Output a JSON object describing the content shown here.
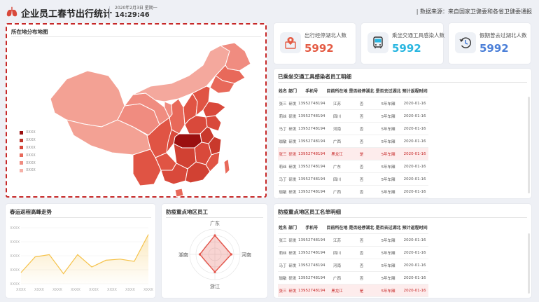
{
  "header": {
    "title": "企业员工春节出行统计",
    "date": "2020年2月3日 星期一",
    "time": "14:29:46",
    "source": "| 数据来源：来自国家卫健委和各省卫健委通报"
  },
  "map": {
    "title": "所在地分布地图",
    "legend": [
      {
        "label": "XXXX",
        "color": "#9b1010"
      },
      {
        "label": "XXXX",
        "color": "#c0362c"
      },
      {
        "label": "XXXX",
        "color": "#d9493b"
      },
      {
        "label": "XXXX",
        "color": "#e8695a"
      },
      {
        "label": "XXXX",
        "color": "#f08c80"
      },
      {
        "label": "XXXX",
        "color": "#f6b1a8"
      }
    ]
  },
  "stats": [
    {
      "label": "出行经停湖北人数",
      "value": "5992",
      "color": "#e45b44",
      "icon": "location-pin-icon"
    },
    {
      "label": "乘坐交通工具感染人数",
      "value": "5992",
      "color": "#29b6e0",
      "icon": "bus-icon"
    },
    {
      "label": "假期曾去过湖北人数",
      "value": "5992",
      "color": "#4b7fd8",
      "icon": "clock-history-icon"
    }
  ],
  "table1": {
    "title": "已乘坐交通工具感染者员工明细",
    "headers": [
      "姓名",
      "部门",
      "手机号",
      "目前所在地",
      "是否经停湖北",
      "是否去过湖北",
      "预计返程时间"
    ],
    "rows": [
      [
        "张三",
        "研发",
        "13952748194",
        "江苏",
        "否",
        "5年车厢",
        "2020-01-16"
      ],
      [
        "莉丝",
        "研发",
        "13952748194",
        "四川",
        "否",
        "5年车厢",
        "2020-01-16"
      ],
      [
        "马丁",
        "研发",
        "13952748194",
        "河南",
        "否",
        "5年车厢",
        "2020-01-16"
      ],
      [
        "珈敏",
        "研发",
        "13952748194",
        "广西",
        "否",
        "5年车厢",
        "2020-01-16"
      ],
      [
        "张三",
        "研发",
        "13952748194",
        "黑龙江",
        "是",
        "5年车厢",
        "2020-01-16"
      ],
      [
        "莉丝",
        "研发",
        "13952748194",
        "广东",
        "否",
        "5年车厢",
        "2020-01-16"
      ],
      [
        "马丁",
        "研发",
        "13952748194",
        "四川",
        "否",
        "5年车厢",
        "2020-01-16"
      ],
      [
        "珈敏",
        "研发",
        "13952748194",
        "广西",
        "否",
        "5年车厢",
        "2020-01-16"
      ]
    ]
  },
  "table2": {
    "title": "防疫重点地区员工名单明细",
    "headers": [
      "姓名",
      "部门",
      "手机号",
      "目前所在地",
      "是否经停湖北",
      "是否去过湖北",
      "预计返程时间"
    ],
    "rows": [
      [
        "张三",
        "研发",
        "13952748194",
        "江苏",
        "否",
        "5年车厢",
        "2020-01-16"
      ],
      [
        "莉丝",
        "研发",
        "13952748194",
        "四川",
        "否",
        "5年车厢",
        "2020-01-16"
      ],
      [
        "马丁",
        "研发",
        "13952748194",
        "河南",
        "否",
        "5年车厢",
        "2020-01-16"
      ],
      [
        "珈敏",
        "研发",
        "13952748194",
        "广西",
        "否",
        "5年车厢",
        "2020-01-16"
      ],
      [
        "张三",
        "研发",
        "13952748194",
        "黑龙江",
        "是",
        "5年车厢",
        "2020-01-16"
      ]
    ]
  },
  "trend": {
    "title": "春运返程高峰走势",
    "y_ticks": [
      "XXXX",
      "XXXX",
      "XXXX",
      "XXXX",
      "XXXX"
    ],
    "x_ticks": [
      "XXXX",
      "XXXX",
      "XXXX",
      "XXXX",
      "XXXX",
      "XXXX",
      "XXXX",
      "XXXX"
    ],
    "values": [
      20,
      48,
      52,
      18,
      52,
      30,
      42,
      44,
      40,
      88
    ],
    "ylim": [
      0,
      100
    ],
    "color": "#f5c24a"
  },
  "radar": {
    "title": "防疫重点地区员工",
    "axes": [
      "广东",
      "河南",
      "浙江",
      "湖南"
    ],
    "values": [
      0.75,
      0.65,
      0.7,
      0.6
    ],
    "color": "#e4544a"
  }
}
